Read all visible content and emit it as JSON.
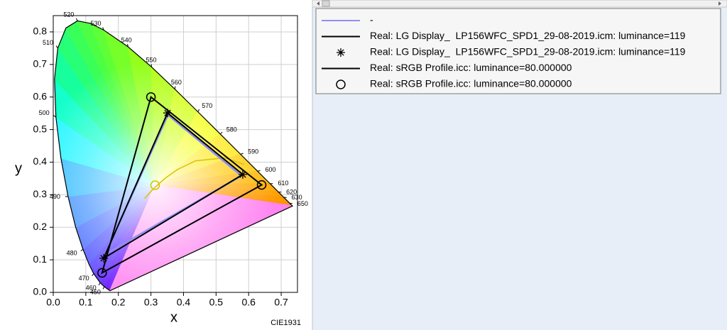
{
  "chart_data": {
    "type": "chromaticity",
    "x_label": "x",
    "y_label": "y",
    "footer": "CIE1931",
    "xlim": [
      0,
      0.75
    ],
    "ylim": [
      0,
      0.85
    ],
    "xticks": [
      {
        "value": 0,
        "label": "0.0"
      },
      {
        "value": 0.1,
        "label": "0.1"
      },
      {
        "value": 0.2,
        "label": "0.2"
      },
      {
        "value": 0.3,
        "label": "0.3"
      },
      {
        "value": 0.4,
        "label": "0.4"
      },
      {
        "value": 0.5,
        "label": "0.5"
      },
      {
        "value": 0.6,
        "label": "0.6"
      },
      {
        "value": 0.7,
        "label": "0.7"
      }
    ],
    "yticks": [
      {
        "value": 0,
        "label": "0.0"
      },
      {
        "value": 0.1,
        "label": "0.1"
      },
      {
        "value": 0.2,
        "label": "0.2"
      },
      {
        "value": 0.3,
        "label": "0.3"
      },
      {
        "value": 0.4,
        "label": "0.4"
      },
      {
        "value": 0.5,
        "label": "0.5"
      },
      {
        "value": 0.6,
        "label": "0.6"
      },
      {
        "value": 0.7,
        "label": "0.7"
      },
      {
        "value": 0.8,
        "label": "0.8"
      }
    ],
    "grid": true,
    "spectral_locus": {
      "x": [
        0.1741,
        0.1566,
        0.144,
        0.1241,
        0.1096,
        0.0913,
        0.0687,
        0.0454,
        0.0235,
        0.0082,
        0.0039,
        0.0139,
        0.0389,
        0.0743,
        0.1142,
        0.1547,
        0.2296,
        0.3016,
        0.3731,
        0.4441,
        0.5125,
        0.5752,
        0.627,
        0.6658,
        0.6915,
        0.7079,
        0.726,
        0.7347
      ],
      "y": [
        0.005,
        0.0177,
        0.0297,
        0.0578,
        0.0868,
        0.1327,
        0.2007,
        0.295,
        0.4127,
        0.5384,
        0.6548,
        0.7502,
        0.812,
        0.8338,
        0.8262,
        0.8059,
        0.7543,
        0.6923,
        0.6245,
        0.5547,
        0.4866,
        0.4242,
        0.3725,
        0.334,
        0.3083,
        0.292,
        0.274,
        0.2653
      ],
      "wavelengths": [
        null,
        450,
        460,
        470,
        null,
        480,
        null,
        490,
        null,
        500,
        null,
        510,
        null,
        520,
        null,
        530,
        540,
        550,
        560,
        570,
        580,
        590,
        600,
        610,
        620,
        630,
        650,
        null
      ]
    },
    "planckian_locus": {
      "x": [
        0.2806,
        0.2952,
        0.3135,
        0.3451,
        0.3805,
        0.4369,
        0.5267,
        0.5857
      ],
      "y": [
        0.2883,
        0.3051,
        0.3236,
        0.3516,
        0.3768,
        0.4041,
        0.4133,
        0.3931
      ],
      "color": "#d6c400"
    },
    "white_point": {
      "x": 0.3127,
      "y": 0.329,
      "color": "#d6c400"
    },
    "series": [
      {
        "name": "-",
        "color": "#8f8ff0",
        "style": "line",
        "closed": true,
        "x": [
          0.352,
          0.578,
          0.16
        ],
        "y": [
          0.545,
          0.358,
          0.117
        ]
      },
      {
        "name": "Real: LG Display_  LP156WFC_SPD1_29-08-2019.icm: luminance=119",
        "color": "#000000",
        "style": "line",
        "closed": true,
        "x": [
          0.351,
          0.582,
          0.155
        ],
        "y": [
          0.551,
          0.362,
          0.105
        ]
      },
      {
        "name": "Real: LG Display_  LP156WFC_SPD1_29-08-2019.icm: luminance=119",
        "color": "#000000",
        "style": "marker",
        "marker": "star",
        "x": [
          0.351,
          0.582,
          0.155
        ],
        "y": [
          0.551,
          0.362,
          0.105
        ]
      },
      {
        "name": "Real: sRGB Profile.icc: luminance=80.000000",
        "color": "#000000",
        "style": "line",
        "closed": true,
        "x": [
          0.64,
          0.3,
          0.15
        ],
        "y": [
          0.33,
          0.6,
          0.06
        ]
      },
      {
        "name": "Real: sRGB Profile.icc: luminance=80.000000",
        "color": "#000000",
        "style": "marker",
        "marker": "circle",
        "x": [
          0.64,
          0.3,
          0.15
        ],
        "y": [
          0.33,
          0.6,
          0.06
        ]
      }
    ]
  }
}
